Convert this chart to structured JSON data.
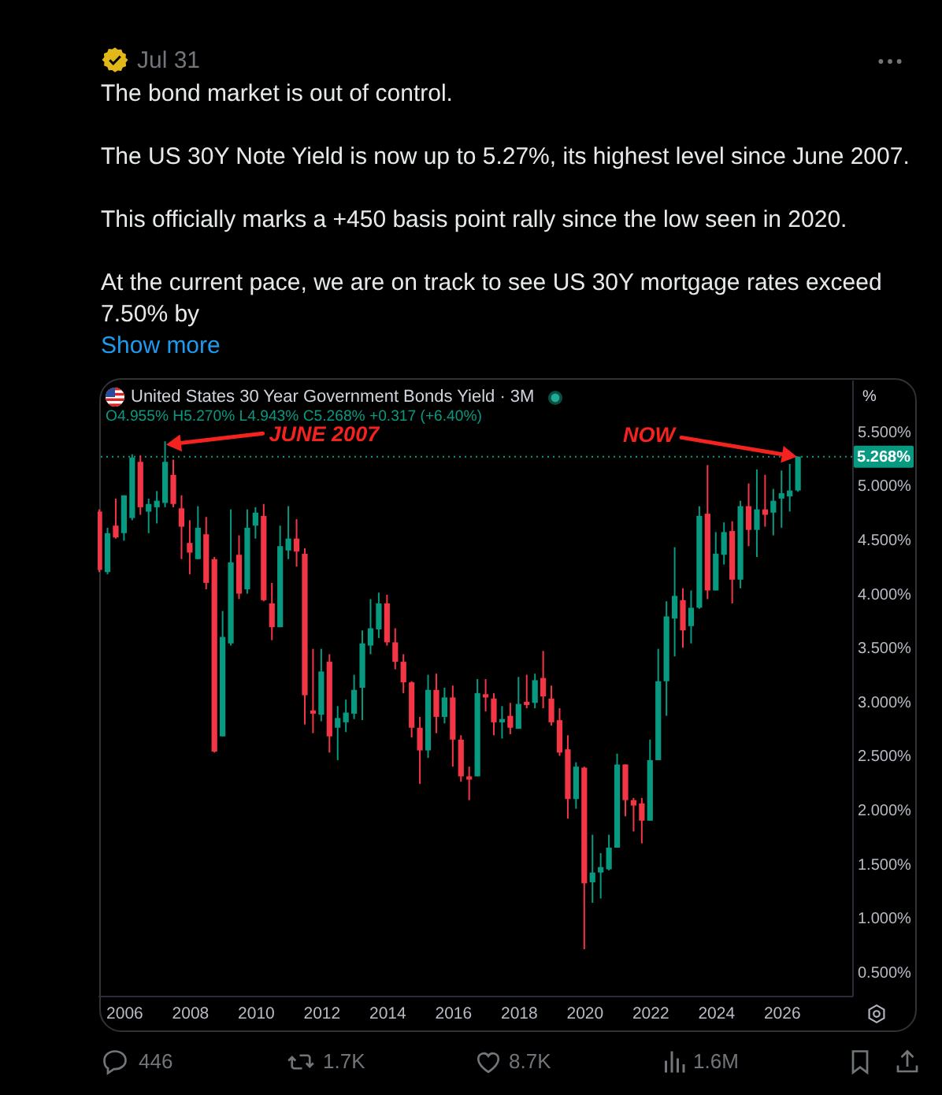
{
  "chart_data": {
    "type": "candlestick",
    "title": "United States 30 Year Government Bonds Yield · 3M",
    "subtitle": "O4.955% H5.270% L4.943% C5.268% +0.317 (+6.40%)",
    "ylabel": "%",
    "annotations": [
      "Jul 31",
      "The bond market is out of control.",
      "The US 30Y Note Yield is now up to 5.27%, its highest level since June 2007.",
      "This officially marks a +450 basis point rally since the low seen in 2020.",
      "At the current pace, we are on track to see US 30Y mortgage rates exceed 7.50% by",
      "Show more",
      {
        "text": "JUNE 2007",
        "x": 2007.25,
        "y": 5.41
      },
      {
        "text": "NOW",
        "x": 2026.5,
        "y": 5.27
      },
      "446",
      "1.7K",
      "8.7K",
      "1.6M"
    ],
    "x": [
      2005.25,
      2005.5,
      2005.75,
      2006,
      2006.25,
      2006.5,
      2006.75,
      2007,
      2007.25,
      2007.5,
      2007.75,
      2008,
      2008.25,
      2008.5,
      2008.75,
      2009,
      2009.25,
      2009.5,
      2009.75,
      2010,
      2010.25,
      2010.5,
      2010.75,
      2011,
      2011.25,
      2011.5,
      2011.75,
      2012,
      2012.25,
      2012.5,
      2012.75,
      2013,
      2013.25,
      2013.5,
      2013.75,
      2014,
      2014.25,
      2014.5,
      2014.75,
      2015,
      2015.25,
      2015.5,
      2015.75,
      2016,
      2016.25,
      2016.5,
      2016.75,
      2017,
      2017.25,
      2017.5,
      2017.75,
      2018,
      2018.25,
      2018.5,
      2018.75,
      2019,
      2019.25,
      2019.5,
      2019.75,
      2020,
      2020.25,
      2020.5,
      2020.75,
      2021,
      2021.25,
      2021.5,
      2021.75,
      2022,
      2022.25,
      2022.5,
      2022.75,
      2023,
      2023.25,
      2023.5,
      2023.75,
      2024,
      2024.25,
      2024.5,
      2024.75,
      2025,
      2025.25,
      2025.5,
      2025.75,
      2026,
      2026.25,
      2026.5
    ],
    "ohlc": [
      [
        4.76,
        4.78,
        4.2,
        4.22
      ],
      [
        4.2,
        4.61,
        4.18,
        4.56
      ],
      [
        4.63,
        4.88,
        4.51,
        4.52
      ],
      [
        4.56,
        4.91,
        4.49,
        4.91
      ],
      [
        4.7,
        5.29,
        4.68,
        5.26
      ],
      [
        5.22,
        5.28,
        4.73,
        4.8
      ],
      [
        4.76,
        4.88,
        4.56,
        4.83
      ],
      [
        4.8,
        4.95,
        4.65,
        4.86
      ],
      [
        4.84,
        5.41,
        4.8,
        5.22
      ],
      [
        5.1,
        5.24,
        4.8,
        4.83
      ],
      [
        4.79,
        4.91,
        4.32,
        4.62
      ],
      [
        4.47,
        4.68,
        4.18,
        4.38
      ],
      [
        4.32,
        4.81,
        4.32,
        4.61
      ],
      [
        4.55,
        4.71,
        4.04,
        4.1
      ],
      [
        4.32,
        4.34,
        2.53,
        2.54
      ],
      [
        2.68,
        3.84,
        2.68,
        3.6
      ],
      [
        3.54,
        4.78,
        3.52,
        4.29
      ],
      [
        4.36,
        4.54,
        3.95,
        4.0
      ],
      [
        4.04,
        4.78,
        4.0,
        4.61
      ],
      [
        4.63,
        4.8,
        4.51,
        4.75
      ],
      [
        4.72,
        4.83,
        3.93,
        3.94
      ],
      [
        3.91,
        4.1,
        3.57,
        3.69
      ],
      [
        3.69,
        4.63,
        3.69,
        4.44
      ],
      [
        4.4,
        4.81,
        4.32,
        4.51
      ],
      [
        4.51,
        4.69,
        4.25,
        4.39
      ],
      [
        4.37,
        4.42,
        2.79,
        3.06
      ],
      [
        2.92,
        3.49,
        2.71,
        2.89
      ],
      [
        2.88,
        3.49,
        2.82,
        3.28
      ],
      [
        3.37,
        3.44,
        2.53,
        2.68
      ],
      [
        2.76,
        2.96,
        2.46,
        2.85
      ],
      [
        2.81,
        3.02,
        2.72,
        2.9
      ],
      [
        2.89,
        3.25,
        2.84,
        3.11
      ],
      [
        3.13,
        3.66,
        2.83,
        3.54
      ],
      [
        3.52,
        3.95,
        3.44,
        3.68
      ],
      [
        3.67,
        4.01,
        3.59,
        3.91
      ],
      [
        3.91,
        3.99,
        3.52,
        3.55
      ],
      [
        3.55,
        3.68,
        3.3,
        3.37
      ],
      [
        3.37,
        3.44,
        3.08,
        3.18
      ],
      [
        3.18,
        3.19,
        2.67,
        2.76
      ],
      [
        2.76,
        2.86,
        2.24,
        2.55
      ],
      [
        2.55,
        3.25,
        2.48,
        3.11
      ],
      [
        3.11,
        3.26,
        2.71,
        2.86
      ],
      [
        2.86,
        3.13,
        2.8,
        3.04
      ],
      [
        3.04,
        3.15,
        2.4,
        2.65
      ],
      [
        2.65,
        2.69,
        2.26,
        2.31
      ],
      [
        2.31,
        2.4,
        2.09,
        2.28
      ],
      [
        2.31,
        3.21,
        2.31,
        3.08
      ],
      [
        3.07,
        3.21,
        2.91,
        3.04
      ],
      [
        3.03,
        3.08,
        2.69,
        2.81
      ],
      [
        2.81,
        2.96,
        2.66,
        2.84
      ],
      [
        2.87,
        2.99,
        2.7,
        2.76
      ],
      [
        2.75,
        3.23,
        2.75,
        2.98
      ],
      [
        3.0,
        3.25,
        2.94,
        2.97
      ],
      [
        2.99,
        3.26,
        2.94,
        3.2
      ],
      [
        3.22,
        3.47,
        2.94,
        3.05
      ],
      [
        3.03,
        3.15,
        2.78,
        2.81
      ],
      [
        2.83,
        2.94,
        2.5,
        2.53
      ],
      [
        2.56,
        2.69,
        1.92,
        2.1
      ],
      [
        2.1,
        2.44,
        2.01,
        2.4
      ],
      [
        2.39,
        2.4,
        0.71,
        1.32
      ],
      [
        1.33,
        1.77,
        1.14,
        1.42
      ],
      [
        1.42,
        1.6,
        1.18,
        1.47
      ],
      [
        1.45,
        1.77,
        1.44,
        1.65
      ],
      [
        1.65,
        2.52,
        1.65,
        2.42
      ],
      [
        2.42,
        2.42,
        1.94,
        2.09
      ],
      [
        2.09,
        2.11,
        1.8,
        2.04
      ],
      [
        2.06,
        2.11,
        1.69,
        1.9
      ],
      [
        1.9,
        2.65,
        1.9,
        2.46
      ],
      [
        2.46,
        3.49,
        2.46,
        3.19
      ],
      [
        3.19,
        3.93,
        2.87,
        3.79
      ],
      [
        3.77,
        4.43,
        3.42,
        3.98
      ],
      [
        3.94,
        4.05,
        3.5,
        3.66
      ],
      [
        3.7,
        4.03,
        3.54,
        3.87
      ],
      [
        3.87,
        4.81,
        3.86,
        4.72
      ],
      [
        4.74,
        5.19,
        3.95,
        4.03
      ],
      [
        4.03,
        4.57,
        4.03,
        4.37
      ],
      [
        4.36,
        4.66,
        4.27,
        4.57
      ],
      [
        4.58,
        4.67,
        3.91,
        4.13
      ],
      [
        4.13,
        4.86,
        4.05,
        4.81
      ],
      [
        4.81,
        5.02,
        4.44,
        4.59
      ],
      [
        4.59,
        5.15,
        4.34,
        4.78
      ],
      [
        4.78,
        5.1,
        4.62,
        4.73
      ],
      [
        4.75,
        4.97,
        4.54,
        4.86
      ],
      [
        4.88,
        5.14,
        4.61,
        4.93
      ],
      [
        4.9,
        5.2,
        4.76,
        4.955
      ],
      [
        4.955,
        5.27,
        4.943,
        5.268
      ]
    ],
    "colors": [
      "#f23645",
      "#089981",
      "#f23645",
      "#089981",
      "#089981",
      "#f23645",
      "#089981",
      "#089981",
      "#089981",
      "#f23645",
      "#f23645",
      "#f23645",
      "#089981",
      "#f23645",
      "#f23645",
      "#089981",
      "#089981",
      "#f23645",
      "#089981",
      "#089981",
      "#f23645",
      "#f23645",
      "#089981",
      "#089981",
      "#f23645",
      "#f23645",
      "#f23645",
      "#089981",
      "#f23645",
      "#089981",
      "#089981",
      "#089981",
      "#089981",
      "#089981",
      "#089981",
      "#f23645",
      "#f23645",
      "#f23645",
      "#f23645",
      "#f23645",
      "#089981",
      "#f23645",
      "#089981",
      "#f23645",
      "#f23645",
      "#f23645",
      "#089981",
      "#f23645",
      "#f23645",
      "#089981",
      "#f23645",
      "#089981",
      "#f23645",
      "#089981",
      "#f23645",
      "#f23645",
      "#f23645",
      "#f23645",
      "#089981",
      "#f23645",
      "#089981",
      "#089981",
      "#089981",
      "#089981",
      "#f23645",
      "#f23645",
      "#f23645",
      "#089981",
      "#089981",
      "#089981",
      "#089981",
      "#f23645",
      "#089981",
      "#089981",
      "#f23645",
      "#089981",
      "#089981",
      "#f23645",
      "#089981",
      "#f23645",
      "#089981",
      "#f23645",
      "#089981",
      "#089981",
      "#089981",
      "#089981"
    ],
    "xlim": [
      2005.2,
      2028.15
    ],
    "xticks": [
      2006,
      2008,
      2010,
      2012,
      2014,
      2016,
      2018,
      2020,
      2022,
      2024,
      2026
    ],
    "ylim": [
      0.28,
      5.98
    ],
    "yticks": [
      {
        "value": 0.5,
        "label": "0.500%"
      },
      {
        "value": 1,
        "label": "1.000%"
      },
      {
        "value": 1.5,
        "label": "1.500%"
      },
      {
        "value": 2,
        "label": "2.000%"
      },
      {
        "value": 2.5,
        "label": "2.500%"
      },
      {
        "value": 3,
        "label": "3.000%"
      },
      {
        "value": 3.5,
        "label": "3.500%"
      },
      {
        "value": 4,
        "label": "4.000%"
      },
      {
        "value": 4.5,
        "label": "4.500%"
      },
      {
        "value": 5,
        "label": "5.000%"
      },
      {
        "value": 5.5,
        "label": "5.500%"
      }
    ],
    "ref_lines": [
      {
        "axis": "y",
        "value": 5.268,
        "label": "5.268%",
        "color": "#089981",
        "line_style": "dotted"
      }
    ]
  }
}
